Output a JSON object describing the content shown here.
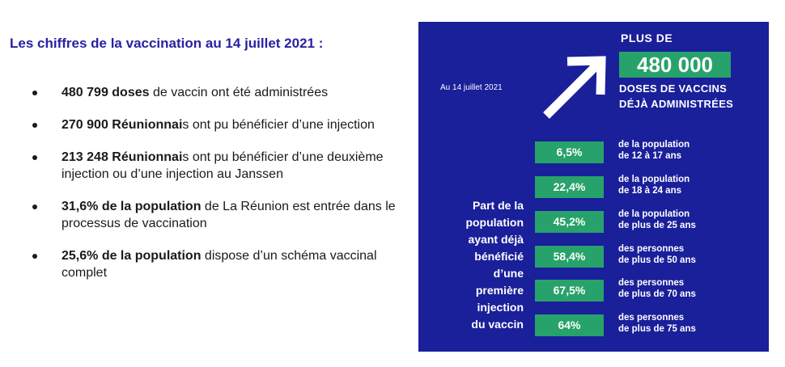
{
  "heading": "Les chiffres de la vaccination au 14 juillet 2021 :",
  "bullets": [
    {
      "bold": "480 799 doses",
      "rest": " de vaccin ont été administrées"
    },
    {
      "bold": "270 900 Réunionnai",
      "rest": "s ont pu bénéficier d’une injection"
    },
    {
      "bold": "213 248 Réunionnai",
      "rest": "s ont pu bénéficier d’une deuxième injection ou d’une injection au Janssen"
    },
    {
      "bold": "31,6% de la population",
      "rest": " de La Réunion est entrée dans le processus de vaccination"
    },
    {
      "bold": "25,6% de la population",
      "rest": " dispose d’un schéma vaccinal complet"
    }
  ],
  "infographic": {
    "date": "Au 14 juillet 2021",
    "plus_de": "PLUS DE",
    "big_number": "480 000",
    "doses_line1": "DOSES DE VACCINS",
    "doses_line2": "DÉJÀ ADMINISTRÉES",
    "part_label": [
      "Part de la",
      "population",
      "ayant déjà",
      "bénéficié",
      "d’une",
      "première",
      "injection",
      "du vaccin"
    ],
    "rows": [
      {
        "pct": "6,5%",
        "line1": "de la population",
        "line2": "de 12 à 17 ans"
      },
      {
        "pct": "22,4%",
        "line1": "de la population",
        "line2": "de 18 à 24 ans"
      },
      {
        "pct": "45,2%",
        "line1": "de la population",
        "line2": "de plus de 25 ans"
      },
      {
        "pct": "58,4%",
        "line1": "des personnes",
        "line2": "de plus de 50 ans"
      },
      {
        "pct": "67,5%",
        "line1": "des personnes",
        "line2": "de plus de 70 ans"
      },
      {
        "pct": "64%",
        "line1": "des personnes",
        "line2": "de plus de 75 ans"
      }
    ],
    "colors": {
      "panel": "#1a1f9a",
      "accent": "#27a26a",
      "heading": "#2a1fa3"
    }
  }
}
